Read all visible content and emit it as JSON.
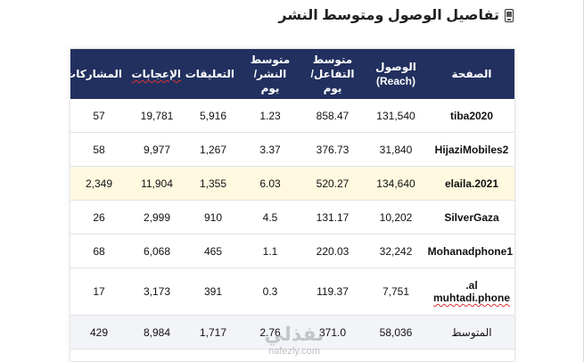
{
  "title": "تفاصيل الوصول ومتوسط النشر",
  "title_icon": "mobile-phone-icon",
  "table": {
    "headers": [
      [
        "الصفحة"
      ],
      [
        "الوصول",
        "(Reach)"
      ],
      [
        "متوسط",
        "التفاعل/يوم"
      ],
      [
        "متوسط",
        "النشر/يوم"
      ],
      [
        "التعليقات"
      ],
      [
        "الإعجابات"
      ],
      [
        "المشاركات"
      ]
    ],
    "rows": [
      {
        "page": "tiba2020",
        "reach": "131,540",
        "avg_engagement": "858.47",
        "avg_posts": "1.23",
        "comments": "5,916",
        "likes": "19,781",
        "shares": "57"
      },
      {
        "page": "HijaziMobiles2",
        "reach": "31,840",
        "avg_engagement": "376.73",
        "avg_posts": "3.37",
        "comments": "1,267",
        "likes": "9,977",
        "shares": "58"
      },
      {
        "page": "elaila.2021",
        "reach": "134,640",
        "avg_engagement": "520.27",
        "avg_posts": "6.03",
        "comments": "1,355",
        "likes": "11,904",
        "shares": "2,349"
      },
      {
        "page": "SilverGaza",
        "reach": "10,202",
        "avg_engagement": "131.17",
        "avg_posts": "4.5",
        "comments": "910",
        "likes": "2,999",
        "shares": "26"
      },
      {
        "page": "Mohanadphone1",
        "reach": "32,242",
        "avg_engagement": "220.03",
        "avg_posts": "1.1",
        "comments": "465",
        "likes": "6,068",
        "shares": "68"
      },
      {
        "page_line1": "al.",
        "page_line2": "muhtadi.phone",
        "reach": "7,751",
        "avg_engagement": "119.37",
        "avg_posts": "0.3",
        "comments": "391",
        "likes": "3,173",
        "shares": "17"
      }
    ],
    "average": {
      "page": "المتوسط",
      "reach": "58,036",
      "avg_engagement": "371.0",
      "avg_posts": "2.76",
      "comments": "1,717",
      "likes": "8,984",
      "shares": "429"
    }
  },
  "watermark": {
    "main": "نفذلي",
    "sub": "nafezly.com"
  },
  "colors": {
    "header_bg": "#22305f",
    "highlight_row": "#fff9e0",
    "average_row": "#f2f4f8"
  }
}
